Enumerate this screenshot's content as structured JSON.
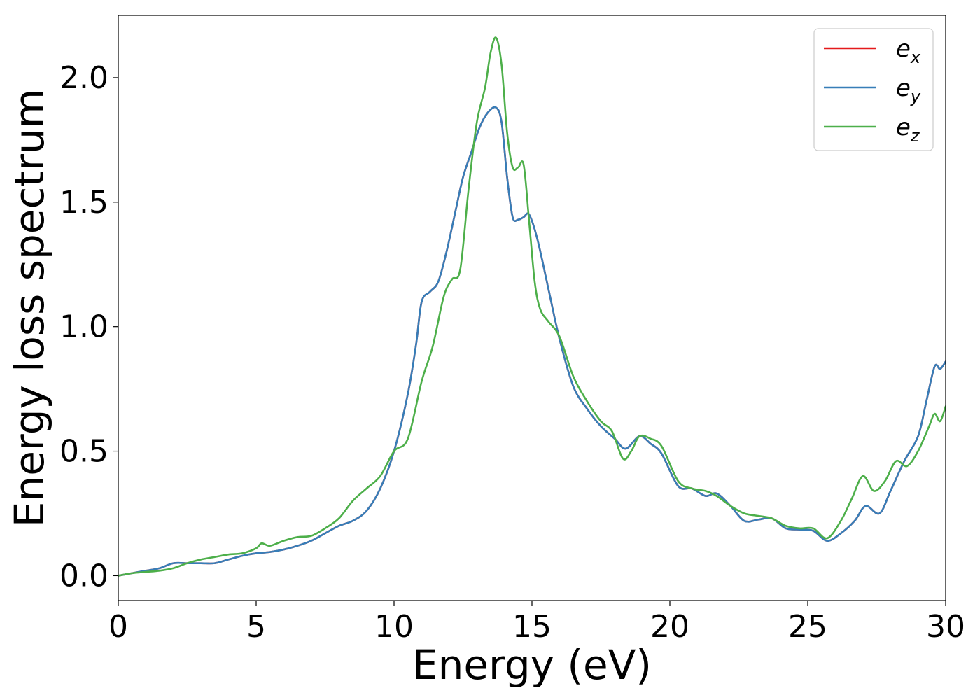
{
  "chart_data": {
    "type": "line",
    "xlabel": "Energy (eV)",
    "ylabel": "Energy loss spectrum",
    "xlim": [
      0,
      30
    ],
    "ylim": [
      -0.1,
      2.25
    ],
    "xticks": [
      0,
      5,
      10,
      15,
      20,
      25,
      30
    ],
    "xtick_labels": [
      "0",
      "5",
      "10",
      "15",
      "20",
      "25",
      "30"
    ],
    "yticks": [
      0.0,
      0.5,
      1.0,
      1.5,
      2.0
    ],
    "ytick_labels": [
      "0.0",
      "0.5",
      "1.0",
      "1.5",
      "2.0"
    ],
    "grid": false,
    "legend_placement": "top-right",
    "series": [
      {
        "name": "e_x",
        "label_base": "e",
        "label_sub": "x",
        "color": "#e41a1c",
        "x": [
          0,
          0.5,
          1,
          1.5,
          2,
          2.5,
          3,
          3.5,
          4,
          4.5,
          5,
          5.5,
          6,
          6.5,
          7,
          7.5,
          8,
          8.5,
          9,
          9.5,
          10,
          10.5,
          10.8,
          11,
          11.3,
          11.6,
          11.9,
          12.2,
          12.5,
          12.8,
          13.1,
          13.4,
          13.7,
          13.9,
          14.1,
          14.3,
          14.5,
          14.7,
          14.9,
          15.2,
          15.6,
          16,
          16.5,
          17,
          17.5,
          18,
          18.4,
          18.9,
          19.3,
          19.7,
          20.3,
          20.8,
          21.3,
          21.7,
          22.2,
          22.7,
          23.2,
          23.7,
          24.2,
          24.7,
          25.2,
          25.7,
          26.2,
          26.7,
          27.1,
          27.6,
          28,
          28.5,
          29,
          29.3,
          29.6,
          29.8,
          30
        ],
        "values": [
          0,
          0.01,
          0.02,
          0.03,
          0.05,
          0.05,
          0.05,
          0.05,
          0.065,
          0.08,
          0.09,
          0.095,
          0.105,
          0.12,
          0.14,
          0.17,
          0.2,
          0.22,
          0.26,
          0.35,
          0.5,
          0.73,
          0.93,
          1.1,
          1.14,
          1.18,
          1.3,
          1.45,
          1.6,
          1.7,
          1.8,
          1.86,
          1.88,
          1.82,
          1.6,
          1.44,
          1.43,
          1.44,
          1.45,
          1.35,
          1.15,
          0.95,
          0.76,
          0.67,
          0.6,
          0.55,
          0.51,
          0.56,
          0.53,
          0.49,
          0.36,
          0.35,
          0.32,
          0.33,
          0.28,
          0.22,
          0.225,
          0.23,
          0.19,
          0.185,
          0.18,
          0.14,
          0.17,
          0.22,
          0.28,
          0.25,
          0.34,
          0.46,
          0.56,
          0.7,
          0.84,
          0.83,
          0.86
        ]
      },
      {
        "name": "e_y",
        "label_base": "e",
        "label_sub": "y",
        "color": "#377eb8",
        "x": [
          0,
          0.5,
          1,
          1.5,
          2,
          2.5,
          3,
          3.5,
          4,
          4.5,
          5,
          5.5,
          6,
          6.5,
          7,
          7.5,
          8,
          8.5,
          9,
          9.5,
          10,
          10.5,
          10.8,
          11,
          11.3,
          11.6,
          11.9,
          12.2,
          12.5,
          12.8,
          13.1,
          13.4,
          13.7,
          13.9,
          14.1,
          14.3,
          14.5,
          14.7,
          14.9,
          15.2,
          15.6,
          16,
          16.5,
          17,
          17.5,
          18,
          18.4,
          18.9,
          19.3,
          19.7,
          20.3,
          20.8,
          21.3,
          21.7,
          22.2,
          22.7,
          23.2,
          23.7,
          24.2,
          24.7,
          25.2,
          25.7,
          26.2,
          26.7,
          27.1,
          27.6,
          28,
          28.5,
          29,
          29.3,
          29.6,
          29.8,
          30
        ],
        "values": [
          0,
          0.01,
          0.02,
          0.03,
          0.05,
          0.05,
          0.05,
          0.05,
          0.065,
          0.08,
          0.09,
          0.095,
          0.105,
          0.12,
          0.14,
          0.17,
          0.2,
          0.22,
          0.26,
          0.35,
          0.5,
          0.73,
          0.93,
          1.1,
          1.14,
          1.18,
          1.3,
          1.45,
          1.6,
          1.7,
          1.8,
          1.86,
          1.88,
          1.82,
          1.6,
          1.44,
          1.43,
          1.44,
          1.45,
          1.35,
          1.15,
          0.95,
          0.76,
          0.67,
          0.6,
          0.55,
          0.51,
          0.56,
          0.53,
          0.49,
          0.36,
          0.35,
          0.32,
          0.33,
          0.28,
          0.22,
          0.225,
          0.23,
          0.19,
          0.185,
          0.18,
          0.14,
          0.17,
          0.22,
          0.28,
          0.25,
          0.34,
          0.46,
          0.56,
          0.7,
          0.84,
          0.83,
          0.86
        ]
      },
      {
        "name": "e_z",
        "label_base": "e",
        "label_sub": "z",
        "color": "#4daf4a",
        "x": [
          0,
          0.5,
          1,
          1.5,
          2,
          2.5,
          3,
          3.5,
          4,
          4.5,
          5,
          5.2,
          5.5,
          6,
          6.5,
          7,
          7.5,
          8,
          8.5,
          9,
          9.5,
          10,
          10.5,
          11,
          11.4,
          11.8,
          12.1,
          12.4,
          12.7,
          13,
          13.3,
          13.5,
          13.7,
          13.9,
          14.1,
          14.3,
          14.5,
          14.7,
          14.9,
          15.1,
          15.3,
          15.6,
          16,
          16.5,
          17,
          17.5,
          17.9,
          18.3,
          18.6,
          18.9,
          19.3,
          19.7,
          20.3,
          20.8,
          21.3,
          21.7,
          22.2,
          22.7,
          23.2,
          23.7,
          24.2,
          24.7,
          25.2,
          25.7,
          26.2,
          26.6,
          27,
          27.4,
          27.8,
          28.2,
          28.6,
          29,
          29.4,
          29.6,
          29.8,
          30
        ],
        "values": [
          0,
          0.01,
          0.015,
          0.02,
          0.03,
          0.05,
          0.065,
          0.075,
          0.085,
          0.09,
          0.11,
          0.13,
          0.12,
          0.14,
          0.155,
          0.16,
          0.19,
          0.23,
          0.3,
          0.35,
          0.4,
          0.5,
          0.55,
          0.78,
          0.92,
          1.12,
          1.19,
          1.23,
          1.55,
          1.82,
          1.96,
          2.1,
          2.16,
          2.05,
          1.78,
          1.64,
          1.64,
          1.65,
          1.42,
          1.18,
          1.07,
          1.02,
          0.96,
          0.8,
          0.7,
          0.62,
          0.58,
          0.47,
          0.5,
          0.56,
          0.55,
          0.52,
          0.38,
          0.35,
          0.34,
          0.32,
          0.28,
          0.25,
          0.24,
          0.23,
          0.2,
          0.19,
          0.19,
          0.15,
          0.22,
          0.31,
          0.4,
          0.34,
          0.38,
          0.46,
          0.44,
          0.5,
          0.6,
          0.65,
          0.62,
          0.68
        ]
      }
    ]
  }
}
